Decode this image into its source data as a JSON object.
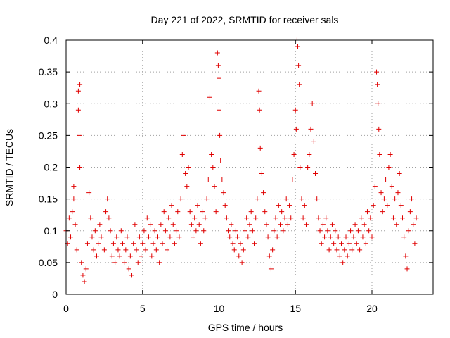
{
  "chart_data": {
    "type": "scatter",
    "title": "Day 221 of 2022, SRMTID for receiver sals",
    "xlabel": "GPS time / hours",
    "ylabel": "SRMTID / TECUs",
    "xlim": [
      0,
      24
    ],
    "ylim": [
      0,
      0.4
    ],
    "xticks": [
      0,
      5,
      10,
      15,
      20
    ],
    "xtick_labels": [
      "0",
      "5",
      "10",
      "15",
      "20"
    ],
    "yticks": [
      0,
      0.05,
      0.1,
      0.15,
      0.2,
      0.25,
      0.3,
      0.35,
      0.4
    ],
    "ytick_labels": [
      "0",
      "0.05",
      "0.1",
      "0.15",
      "0.2",
      "0.25",
      "0.3",
      "0.35",
      "0.4"
    ],
    "grid": true,
    "marker": "+",
    "color": "#e00000",
    "series": [
      {
        "name": "SRMTID",
        "points": [
          [
            0.0,
            0.1
          ],
          [
            0.1,
            0.08
          ],
          [
            0.2,
            0.12
          ],
          [
            0.3,
            0.09
          ],
          [
            0.4,
            0.13
          ],
          [
            0.5,
            0.15
          ],
          [
            0.5,
            0.17
          ],
          [
            0.6,
            0.11
          ],
          [
            0.7,
            0.07
          ],
          [
            0.8,
            0.32
          ],
          [
            0.8,
            0.29
          ],
          [
            0.85,
            0.25
          ],
          [
            0.9,
            0.2
          ],
          [
            0.9,
            0.33
          ],
          [
            1.0,
            0.05
          ],
          [
            1.1,
            0.03
          ],
          [
            1.2,
            0.02
          ],
          [
            1.3,
            0.04
          ],
          [
            1.4,
            0.08
          ],
          [
            1.5,
            0.16
          ],
          [
            1.6,
            0.12
          ],
          [
            1.7,
            0.09
          ],
          [
            1.8,
            0.07
          ],
          [
            1.9,
            0.1
          ],
          [
            2.0,
            0.06
          ],
          [
            2.1,
            0.08
          ],
          [
            2.2,
            0.11
          ],
          [
            2.3,
            0.09
          ],
          [
            2.5,
            0.07
          ],
          [
            2.6,
            0.13
          ],
          [
            2.7,
            0.15
          ],
          [
            2.8,
            0.12
          ],
          [
            2.9,
            0.1
          ],
          [
            3.0,
            0.06
          ],
          [
            3.1,
            0.08
          ],
          [
            3.2,
            0.05
          ],
          [
            3.3,
            0.09
          ],
          [
            3.4,
            0.07
          ],
          [
            3.5,
            0.06
          ],
          [
            3.6,
            0.1
          ],
          [
            3.7,
            0.08
          ],
          [
            3.8,
            0.05
          ],
          [
            3.9,
            0.07
          ],
          [
            4.0,
            0.09
          ],
          [
            4.1,
            0.04
          ],
          [
            4.2,
            0.06
          ],
          [
            4.3,
            0.03
          ],
          [
            4.4,
            0.08
          ],
          [
            4.5,
            0.11
          ],
          [
            4.6,
            0.07
          ],
          [
            4.7,
            0.05
          ],
          [
            4.8,
            0.09
          ],
          [
            4.9,
            0.06
          ],
          [
            5.0,
            0.08
          ],
          [
            5.1,
            0.1
          ],
          [
            5.2,
            0.07
          ],
          [
            5.3,
            0.12
          ],
          [
            5.4,
            0.09
          ],
          [
            5.5,
            0.11
          ],
          [
            5.6,
            0.06
          ],
          [
            5.7,
            0.08
          ],
          [
            5.8,
            0.1
          ],
          [
            5.9,
            0.07
          ],
          [
            6.0,
            0.09
          ],
          [
            6.1,
            0.05
          ],
          [
            6.2,
            0.11
          ],
          [
            6.3,
            0.08
          ],
          [
            6.4,
            0.13
          ],
          [
            6.5,
            0.1
          ],
          [
            6.6,
            0.07
          ],
          [
            6.7,
            0.12
          ],
          [
            6.8,
            0.09
          ],
          [
            6.9,
            0.14
          ],
          [
            7.0,
            0.11
          ],
          [
            7.1,
            0.08
          ],
          [
            7.2,
            0.1
          ],
          [
            7.3,
            0.13
          ],
          [
            7.4,
            0.09
          ],
          [
            7.5,
            0.15
          ],
          [
            7.6,
            0.22
          ],
          [
            7.7,
            0.25
          ],
          [
            7.8,
            0.19
          ],
          [
            7.9,
            0.17
          ],
          [
            8.0,
            0.2
          ],
          [
            8.1,
            0.13
          ],
          [
            8.2,
            0.11
          ],
          [
            8.3,
            0.09
          ],
          [
            8.4,
            0.12
          ],
          [
            8.5,
            0.1
          ],
          [
            8.6,
            0.14
          ],
          [
            8.7,
            0.11
          ],
          [
            8.8,
            0.08
          ],
          [
            8.9,
            0.13
          ],
          [
            9.0,
            0.1
          ],
          [
            9.1,
            0.12
          ],
          [
            9.2,
            0.15
          ],
          [
            9.3,
            0.18
          ],
          [
            9.4,
            0.31
          ],
          [
            9.5,
            0.22
          ],
          [
            9.6,
            0.2
          ],
          [
            9.7,
            0.17
          ],
          [
            9.8,
            0.13
          ],
          [
            9.9,
            0.38
          ],
          [
            9.95,
            0.36
          ],
          [
            10.0,
            0.34
          ],
          [
            10.0,
            0.29
          ],
          [
            10.05,
            0.25
          ],
          [
            10.1,
            0.21
          ],
          [
            10.2,
            0.18
          ],
          [
            10.3,
            0.16
          ],
          [
            10.4,
            0.14
          ],
          [
            10.5,
            0.12
          ],
          [
            10.6,
            0.1
          ],
          [
            10.7,
            0.09
          ],
          [
            10.8,
            0.11
          ],
          [
            10.9,
            0.08
          ],
          [
            11.0,
            0.07
          ],
          [
            11.1,
            0.1
          ],
          [
            11.2,
            0.09
          ],
          [
            11.3,
            0.06
          ],
          [
            11.4,
            0.08
          ],
          [
            11.5,
            0.05
          ],
          [
            11.6,
            0.07
          ],
          [
            11.7,
            0.1
          ],
          [
            11.8,
            0.12
          ],
          [
            11.9,
            0.09
          ],
          [
            12.0,
            0.11
          ],
          [
            12.1,
            0.13
          ],
          [
            12.2,
            0.1
          ],
          [
            12.3,
            0.08
          ],
          [
            12.4,
            0.12
          ],
          [
            12.5,
            0.15
          ],
          [
            12.6,
            0.32
          ],
          [
            12.65,
            0.29
          ],
          [
            12.7,
            0.23
          ],
          [
            12.8,
            0.19
          ],
          [
            12.9,
            0.16
          ],
          [
            13.0,
            0.13
          ],
          [
            13.1,
            0.11
          ],
          [
            13.2,
            0.09
          ],
          [
            13.3,
            0.06
          ],
          [
            13.4,
            0.04
          ],
          [
            13.5,
            0.07
          ],
          [
            13.6,
            0.1
          ],
          [
            13.7,
            0.12
          ],
          [
            13.8,
            0.09
          ],
          [
            13.9,
            0.14
          ],
          [
            14.0,
            0.11
          ],
          [
            14.1,
            0.13
          ],
          [
            14.2,
            0.1
          ],
          [
            14.3,
            0.12
          ],
          [
            14.4,
            0.15
          ],
          [
            14.5,
            0.11
          ],
          [
            14.6,
            0.14
          ],
          [
            14.7,
            0.12
          ],
          [
            14.8,
            0.18
          ],
          [
            14.9,
            0.22
          ],
          [
            15.0,
            0.29
          ],
          [
            15.05,
            0.26
          ],
          [
            15.1,
            0.4
          ],
          [
            15.15,
            0.39
          ],
          [
            15.2,
            0.36
          ],
          [
            15.25,
            0.33
          ],
          [
            15.3,
            0.2
          ],
          [
            15.4,
            0.15
          ],
          [
            15.5,
            0.12
          ],
          [
            15.6,
            0.14
          ],
          [
            15.7,
            0.11
          ],
          [
            15.8,
            0.2
          ],
          [
            15.9,
            0.22
          ],
          [
            16.0,
            0.26
          ],
          [
            16.1,
            0.3
          ],
          [
            16.2,
            0.24
          ],
          [
            16.3,
            0.19
          ],
          [
            16.4,
            0.15
          ],
          [
            16.5,
            0.12
          ],
          [
            16.6,
            0.1
          ],
          [
            16.7,
            0.08
          ],
          [
            16.8,
            0.11
          ],
          [
            16.9,
            0.09
          ],
          [
            17.0,
            0.12
          ],
          [
            17.1,
            0.1
          ],
          [
            17.2,
            0.07
          ],
          [
            17.3,
            0.09
          ],
          [
            17.4,
            0.11
          ],
          [
            17.5,
            0.08
          ],
          [
            17.6,
            0.1
          ],
          [
            17.7,
            0.07
          ],
          [
            17.8,
            0.09
          ],
          [
            17.9,
            0.06
          ],
          [
            18.0,
            0.08
          ],
          [
            18.1,
            0.05
          ],
          [
            18.2,
            0.07
          ],
          [
            18.3,
            0.09
          ],
          [
            18.4,
            0.06
          ],
          [
            18.5,
            0.08
          ],
          [
            18.6,
            0.1
          ],
          [
            18.7,
            0.07
          ],
          [
            18.8,
            0.09
          ],
          [
            18.9,
            0.11
          ],
          [
            19.0,
            0.08
          ],
          [
            19.1,
            0.1
          ],
          [
            19.2,
            0.07
          ],
          [
            19.3,
            0.12
          ],
          [
            19.4,
            0.09
          ],
          [
            19.5,
            0.11
          ],
          [
            19.6,
            0.08
          ],
          [
            19.7,
            0.13
          ],
          [
            19.8,
            0.1
          ],
          [
            19.9,
            0.12
          ],
          [
            20.0,
            0.09
          ],
          [
            20.1,
            0.14
          ],
          [
            20.2,
            0.17
          ],
          [
            20.3,
            0.35
          ],
          [
            20.35,
            0.33
          ],
          [
            20.4,
            0.3
          ],
          [
            20.45,
            0.26
          ],
          [
            20.5,
            0.22
          ],
          [
            20.6,
            0.16
          ],
          [
            20.7,
            0.13
          ],
          [
            20.8,
            0.15
          ],
          [
            20.9,
            0.18
          ],
          [
            21.0,
            0.14
          ],
          [
            21.1,
            0.2
          ],
          [
            21.2,
            0.22
          ],
          [
            21.3,
            0.17
          ],
          [
            21.4,
            0.12
          ],
          [
            21.5,
            0.15
          ],
          [
            21.6,
            0.11
          ],
          [
            21.7,
            0.16
          ],
          [
            21.8,
            0.19
          ],
          [
            21.9,
            0.14
          ],
          [
            22.0,
            0.12
          ],
          [
            22.1,
            0.09
          ],
          [
            22.2,
            0.06
          ],
          [
            22.3,
            0.04
          ],
          [
            22.4,
            0.1
          ],
          [
            22.5,
            0.13
          ],
          [
            22.6,
            0.15
          ],
          [
            22.7,
            0.11
          ],
          [
            22.8,
            0.08
          ],
          [
            22.9,
            0.12
          ]
        ]
      }
    ]
  }
}
